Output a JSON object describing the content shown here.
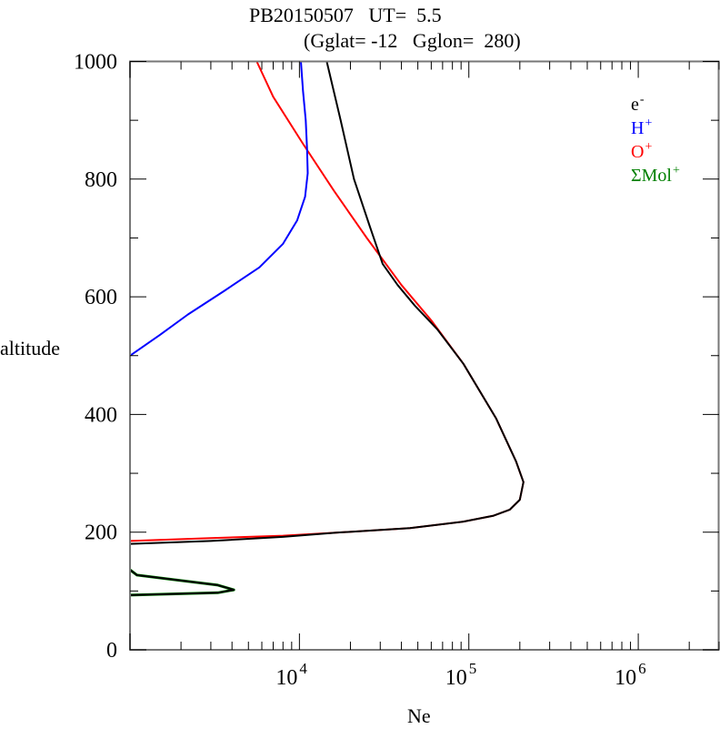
{
  "chart_data": {
    "type": "line",
    "title_line1": "PB20150507   UT=  5.5",
    "title_line2": "(Gglat= -12   Gglon=  280)",
    "xlabel": "Ne",
    "ylabel": "altitude",
    "xscale": "log",
    "xlim": [
      1000,
      3000000
    ],
    "ylim": [
      0,
      1000
    ],
    "y_ticks": [
      0,
      200,
      400,
      600,
      800,
      1000
    ],
    "y_tick_labels": [
      "0",
      "200",
      "400",
      "600",
      "800",
      "1000"
    ],
    "x_ticks": [
      10000,
      100000,
      1000000
    ],
    "x_tick_labels": [
      {
        "base": "10",
        "exp": "4"
      },
      {
        "base": "10",
        "exp": "5"
      },
      {
        "base": "10",
        "exp": "6"
      }
    ],
    "legend_position": "top-right",
    "legend": [
      {
        "label": "e",
        "sup": "-",
        "color": "#000000"
      },
      {
        "label": "H",
        "sup": "+",
        "color": "#0000ff"
      },
      {
        "label": "O",
        "sup": "+",
        "color": "#ff0000"
      },
      {
        "label": "ΣMol",
        "sup": "+",
        "color": "#008000"
      }
    ],
    "series": [
      {
        "name": "O+",
        "color": "#ff0000",
        "points": [
          [
            1000,
            185
          ],
          [
            3000,
            190
          ],
          [
            8000,
            194
          ],
          [
            16500,
            199
          ],
          [
            45000,
            207
          ],
          [
            93000,
            218
          ],
          [
            140000,
            228
          ],
          [
            174000,
            238
          ],
          [
            200000,
            255
          ],
          [
            210000,
            285
          ],
          [
            190000,
            320
          ],
          [
            145000,
            393
          ],
          [
            93000,
            486
          ],
          [
            60000,
            560
          ],
          [
            40000,
            620
          ],
          [
            25000,
            700
          ],
          [
            16000,
            780
          ],
          [
            10500,
            860
          ],
          [
            7000,
            940
          ],
          [
            5600,
            1000
          ]
        ]
      },
      {
        "name": "H+",
        "color": "#0000ff",
        "points": [
          [
            1000,
            500
          ],
          [
            1500,
            535
          ],
          [
            2200,
            570
          ],
          [
            3600,
            610
          ],
          [
            5800,
            650
          ],
          [
            8000,
            690
          ],
          [
            9700,
            730
          ],
          [
            10800,
            770
          ],
          [
            11200,
            810
          ],
          [
            11100,
            850
          ],
          [
            10900,
            900
          ],
          [
            10500,
            950
          ],
          [
            10200,
            1000
          ]
        ]
      },
      {
        "name": "e-",
        "color": "#000000",
        "points": [
          [
            1000,
            93
          ],
          [
            3300,
            97
          ],
          [
            4100,
            102
          ],
          [
            3300,
            110
          ],
          [
            1100,
            127
          ],
          [
            1000,
            136
          ],
          [
            null,
            null
          ],
          [
            1000,
            180
          ],
          [
            3000,
            185
          ],
          [
            8000,
            192
          ],
          [
            16500,
            199
          ],
          [
            45000,
            207
          ],
          [
            93000,
            218
          ],
          [
            140000,
            228
          ],
          [
            174000,
            238
          ],
          [
            200000,
            255
          ],
          [
            210000,
            285
          ],
          [
            190000,
            320
          ],
          [
            145000,
            393
          ],
          [
            93000,
            486
          ],
          [
            65000,
            545
          ],
          [
            48000,
            585
          ],
          [
            38000,
            620
          ],
          [
            31000,
            656
          ],
          [
            26000,
            720
          ],
          [
            21000,
            800
          ],
          [
            17500,
            900
          ],
          [
            14500,
            1000
          ]
        ]
      },
      {
        "name": "ΣMol+",
        "color": "#008000",
        "points": [
          [
            1000,
            93
          ],
          [
            3300,
            97
          ],
          [
            4100,
            102
          ],
          [
            3300,
            110
          ],
          [
            1100,
            127
          ],
          [
            1000,
            136
          ]
        ]
      }
    ]
  }
}
